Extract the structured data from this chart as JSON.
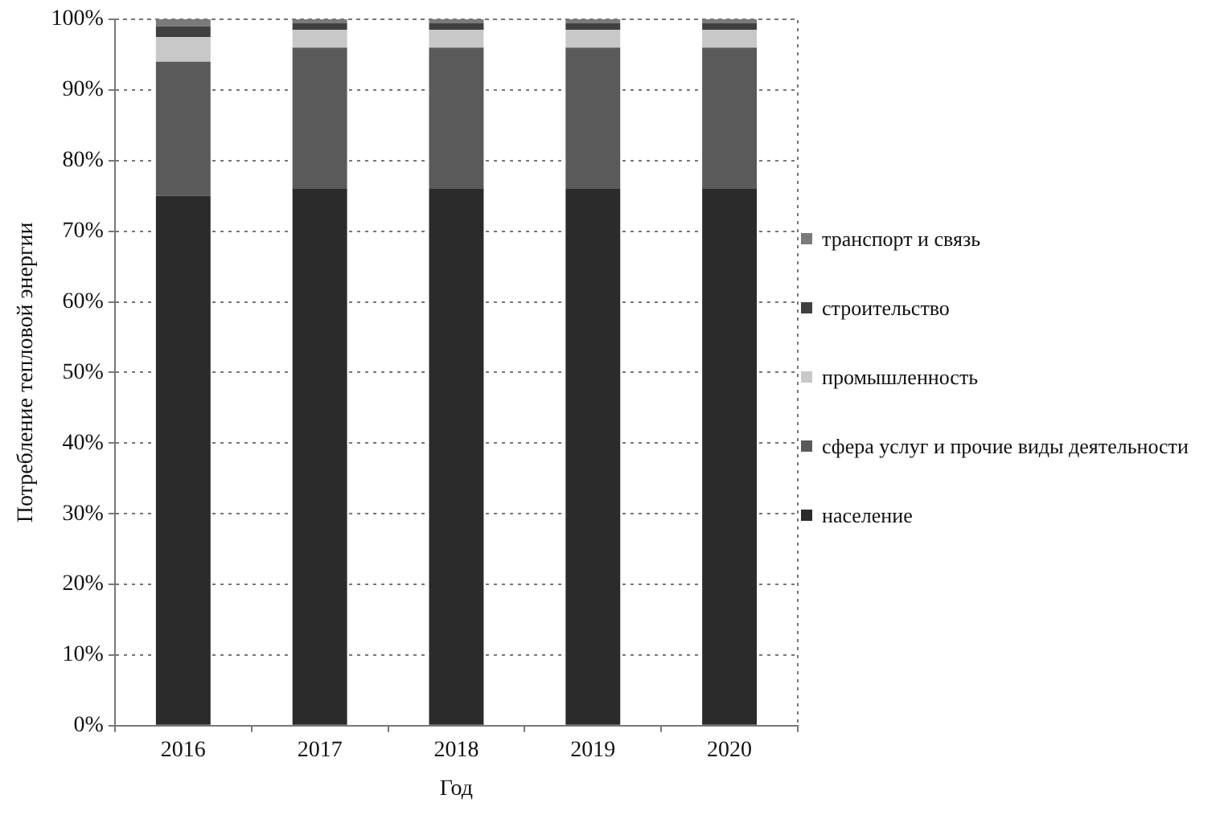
{
  "chart_data": {
    "type": "bar",
    "stacked": true,
    "xlabel": "Год",
    "ylabel": "Потребление тепловой энергии",
    "categories": [
      "2016",
      "2017",
      "2018",
      "2019",
      "2020"
    ],
    "series": [
      {
        "name": "население",
        "color": "#2b2b2b",
        "values": [
          75,
          76,
          76,
          76,
          76
        ]
      },
      {
        "name": "сфера услуг  и прочие виды деятельности",
        "color": "#5a5a5a",
        "values": [
          19,
          20,
          20,
          20,
          20
        ]
      },
      {
        "name": "промышленность",
        "color": "#c8c8c8",
        "values": [
          3.5,
          2.5,
          2.5,
          2.5,
          2.5
        ]
      },
      {
        "name": "строительство",
        "color": "#404040",
        "values": [
          1.5,
          1,
          1,
          1,
          1
        ]
      },
      {
        "name": "транспорт и связь",
        "color": "#7a7a7a",
        "values": [
          1,
          0.5,
          0.5,
          0.5,
          0.5
        ]
      }
    ],
    "ylim": [
      0,
      100
    ],
    "yticks": [
      {
        "value": 0,
        "label": "0%"
      },
      {
        "value": 10,
        "label": "10%"
      },
      {
        "value": 20,
        "label": "20%"
      },
      {
        "value": 30,
        "label": "30%"
      },
      {
        "value": 40,
        "label": "40%"
      },
      {
        "value": 50,
        "label": "50%"
      },
      {
        "value": 60,
        "label": "60%"
      },
      {
        "value": 70,
        "label": "70%"
      },
      {
        "value": 80,
        "label": "80%"
      },
      {
        "value": 90,
        "label": "90%"
      },
      {
        "value": 100,
        "label": "100%"
      }
    ],
    "grid": "y",
    "legend": "right"
  }
}
